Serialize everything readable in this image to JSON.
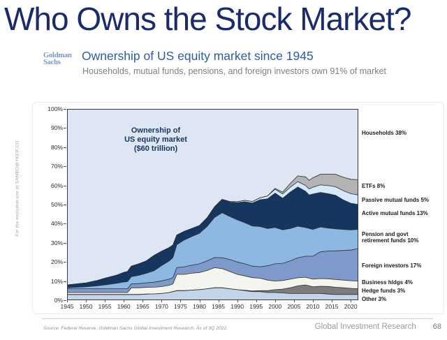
{
  "slide": {
    "title": "Who Owns the Stock Market?",
    "watermark": "For the exclusive use of SAMBO@YKER.CO",
    "source": "Source: Federal Reserve, Goldman Sachs Global Investment Research. As of 3Q 2022.",
    "footer_right": "Global Investment Research",
    "page_number": "68"
  },
  "header": {
    "logo_line1": "Goldman",
    "logo_line2": "Sachs",
    "title": "Ownership of US equity market since 1945",
    "subtitle": "Households, mutual funds, pensions, and foreign investors own 91% of market"
  },
  "chart_data": {
    "type": "area",
    "stacked": true,
    "annotation_lines": [
      "Ownership of",
      "US equity market",
      "($60 trillion)"
    ],
    "ylim": [
      0,
      100
    ],
    "y_ticks": [
      "0%",
      "10%",
      "20%",
      "30%",
      "40%",
      "50%",
      "60%",
      "70%",
      "80%",
      "90%",
      "100%"
    ],
    "x_ticks": [
      1945,
      1950,
      1955,
      1960,
      1965,
      1970,
      1975,
      1980,
      1985,
      1990,
      1995,
      2000,
      2005,
      2010,
      2015,
      2020
    ],
    "x_range": [
      1945,
      2022
    ],
    "grid": false,
    "legend_position": "right",
    "x": [
      1945,
      1947,
      1950,
      1953,
      1955,
      1958,
      1960,
      1961,
      1962,
      1964,
      1966,
      1968,
      1970,
      1972,
      1973,
      1974,
      1976,
      1978,
      1980,
      1982,
      1984,
      1986,
      1988,
      1990,
      1992,
      1994,
      1996,
      1998,
      2000,
      2002,
      2004,
      2006,
      2008,
      2009,
      2010,
      2012,
      2014,
      2016,
      2018,
      2020,
      2022
    ],
    "background_series": {
      "name": "Households",
      "label": "Households 38%",
      "color": "#dde6f2"
    },
    "series": [
      {
        "name": "Other",
        "label": "Other 3%",
        "color": "#c4d4e9",
        "values": [
          3,
          3,
          3,
          3,
          3,
          3,
          3,
          3,
          3,
          3,
          3.2,
          3.3,
          3.5,
          4,
          4.5,
          5,
          5,
          5.3,
          5.5,
          6,
          6.5,
          6.5,
          6,
          5.5,
          5,
          4.5,
          4.5,
          4,
          4,
          3.8,
          3.5,
          3.5,
          3.5,
          3.5,
          3.5,
          3.5,
          3.2,
          3,
          3,
          3,
          3
        ]
      },
      {
        "name": "Hedge funds",
        "label": "Hedge funds 3%",
        "color": "#7c7c7c",
        "values": [
          0,
          0,
          0,
          0,
          0,
          0,
          0,
          0,
          0,
          0,
          0,
          0,
          0,
          0,
          0,
          0,
          0,
          0,
          0,
          0,
          0,
          0,
          0,
          0,
          0.2,
          0.3,
          0.5,
          1,
          1.5,
          2,
          3,
          4,
          4.5,
          4,
          3.5,
          3.8,
          4,
          3.8,
          3.5,
          3.2,
          3
        ]
      },
      {
        "name": "Business hldgs",
        "label": "Business hldgs 4%",
        "color": "#f5f5f0",
        "values": [
          1,
          1,
          1,
          1,
          1,
          1,
          1,
          1,
          3.5,
          3.5,
          3.5,
          3.5,
          3.6,
          3.8,
          4,
          8.5,
          8.5,
          8.8,
          9,
          9.5,
          10.5,
          10,
          9,
          8,
          7.5,
          7,
          6.5,
          5.5,
          4.5,
          4.5,
          4.5,
          4.2,
          4,
          4,
          4,
          4,
          4,
          4,
          4,
          4,
          4
        ]
      },
      {
        "name": "Foreign investors",
        "label": "Foreign investors 17%",
        "color": "#7e9aca",
        "values": [
          2,
          2,
          2,
          2,
          2,
          2,
          2,
          2,
          2,
          2.2,
          2.4,
          2.6,
          3,
          3.2,
          3.3,
          3.5,
          4,
          4.2,
          4.5,
          5,
          5.3,
          5.7,
          6.3,
          6.5,
          6.3,
          6,
          6,
          7.5,
          9,
          9,
          9.5,
          10.5,
          11,
          11.5,
          12,
          14,
          14.5,
          15,
          15.5,
          16,
          17
        ]
      },
      {
        "name": "Pension and govt retirement funds",
        "label": "Pension and govt retirement funds 10%",
        "color": "#8cb8e2",
        "values": [
          0.5,
          0.7,
          1,
          1.5,
          2,
          2.8,
          3.5,
          3.7,
          3.8,
          4.3,
          5,
          6,
          8,
          9.5,
          10.5,
          12,
          14,
          15,
          16,
          18,
          21,
          23.5,
          22.5,
          22,
          21.5,
          21,
          21,
          19.5,
          19,
          17.5,
          17,
          16.5,
          15,
          14.5,
          14,
          13,
          12,
          11.5,
          11,
          10.5,
          10
        ]
      },
      {
        "name": "Active mutual funds",
        "label": "Active mutual funds 13%",
        "color": "#16365f",
        "values": [
          1.5,
          1.7,
          2,
          2.8,
          3.5,
          4.2,
          5,
          5.3,
          5.5,
          6,
          6.5,
          8,
          7.5,
          7,
          6.5,
          5,
          4.5,
          4.2,
          4,
          4.5,
          5.5,
          7,
          7.5,
          9,
          11,
          12,
          14,
          15.5,
          18,
          16.5,
          19,
          20.5,
          19,
          17.5,
          18.5,
          18,
          18,
          17.5,
          15.5,
          14,
          13
        ]
      },
      {
        "name": "Passive mutual funds",
        "label": "Passive mutual funds 5%",
        "color": "#d6e9fa",
        "values": [
          0,
          0,
          0,
          0,
          0,
          0,
          0,
          0,
          0,
          0,
          0,
          0,
          0,
          0,
          0,
          0,
          0,
          0,
          0,
          0,
          0,
          0,
          0.3,
          0.5,
          0.7,
          0.8,
          1,
          1.5,
          2,
          2.2,
          2.5,
          2.8,
          3,
          3.2,
          3.5,
          4,
          4.2,
          4.5,
          4.8,
          5,
          5
        ]
      },
      {
        "name": "ETFs",
        "label": "ETFs 8%",
        "color": "#b3b3b3",
        "values": [
          0,
          0,
          0,
          0,
          0,
          0,
          0,
          0,
          0,
          0,
          0,
          0,
          0,
          0,
          0,
          0,
          0,
          0,
          0,
          0,
          0,
          0,
          0,
          0,
          0,
          0,
          0,
          0,
          0.5,
          1,
          2,
          3,
          4.5,
          4.5,
          5,
          5.5,
          6,
          6.5,
          7,
          7.5,
          8
        ]
      }
    ],
    "right_labels": [
      "Households 38%",
      "ETFs 8%",
      "Passive mutual funds 5%",
      "Active mutual funds 13%",
      "Pension and govt retirement funds 10%",
      "Foreign investors 17%",
      "Business hldgs 4%",
      "Hedge funds 3%",
      "Other 3%"
    ]
  }
}
